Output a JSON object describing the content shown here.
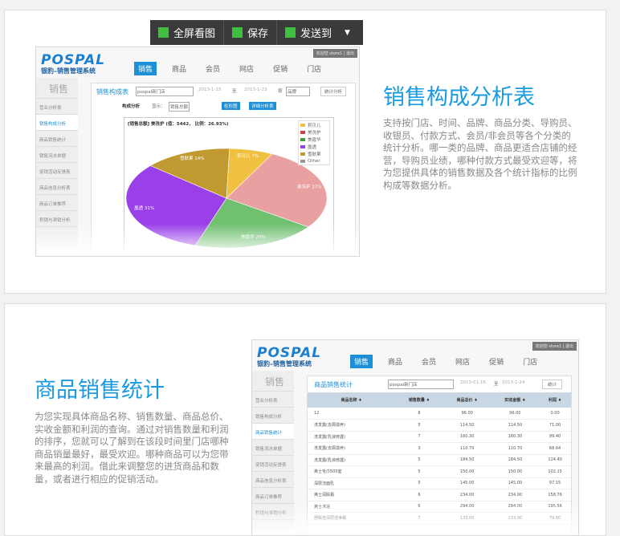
{
  "toolbar": {
    "fullscreen": "全屏看图",
    "save": "保存",
    "send": "发送到"
  },
  "app": {
    "logo": "POSPAL",
    "subtitle": "银豹–销售管理系统",
    "welcome": "欢迎您 store1 | 退出",
    "nav": [
      "销售",
      "商品",
      "会员",
      "网店",
      "促销",
      "门店"
    ],
    "side_header": "销售",
    "side": [
      "营业分析表",
      "销售构成分析",
      "商品销售统计",
      "销售流水单据",
      "促销活动反馈表",
      "商品信息分析表",
      "商品订单推荐",
      "积销与滞销分析"
    ]
  },
  "section1": {
    "title": "销售构成分析表",
    "description": "支持按门店、时间、品牌、商品分类、导购员、收银员、付款方式、会员/非会员等各个分类的统计分析。哪一类的品牌、商品更适合店铺的经营，导购员业绩，哪种付款方式最受欢迎等，将为您提供具体的销售数据及各个统计指标的比例构成等数据分析。",
    "panel_title": "销售构成表",
    "store": "pospal新门店",
    "date_from": "2013-1-15",
    "to": "至",
    "date_to": "2013-1-23",
    "by": "按",
    "by_value": "品牌",
    "stat_btn": "统计分析",
    "analysis": "构成分析",
    "show": "显示：",
    "show_value": "销售总额",
    "bar_btn": "柱形图",
    "detail_btn": "详细分析表",
    "info": "[销售总额] 美洗护 (值：5442， 比例：26.93%)",
    "pie": {
      "type": "pie",
      "slices": [
        {
          "name": "Other",
          "value": 0,
          "color": "#999999"
        },
        {
          "name": "莉贝儿",
          "value": 7,
          "color": "#f0c040"
        },
        {
          "name": "美洗护",
          "value": 27,
          "color": "#e8a0a0"
        },
        {
          "name": "美霞华",
          "value": 20,
          "color": "#70c070"
        },
        {
          "name": "凰透",
          "value": 31,
          "color": "#9a40e8"
        },
        {
          "name": "雪肤果",
          "value": 14,
          "color": "#c09a30"
        }
      ],
      "legend_colors": [
        "#f0c040",
        "#d04040",
        "#40a040",
        "#9a40e8",
        "#c09a30",
        "#999999"
      ]
    }
  },
  "section2": {
    "title": "商品销售统计",
    "description": "为您实现具体商品名称、销售数量、商品总价、实收金额和利润的查询。通过对销售数量和利润的排序，您就可以了解到在该段时间里门店哪种商品销量最好，最受欢迎。哪种商品可以为您带来最高的利润。借此来调整您的进货商品和数量，或者进行相应的促销活动。",
    "panel_title": "商品销售统计",
    "store": "pospal新门店",
    "date_from": "2013-01-16",
    "to": "至",
    "date_to": "2013-1-24",
    "stat_btn": "统计",
    "columns": [
      "商品名称 ♦",
      "销售数量 ♦",
      "商品总价 ♦",
      "实收金额 ♦",
      "利润 ♦"
    ],
    "rows": [
      [
        "12",
        "8",
        "96.00",
        "96.00",
        "0.00"
      ],
      [
        "洗发露(去屑滋养)",
        "5",
        "114.50",
        "114.50",
        "71.00"
      ],
      [
        "洗发露(乳液修護)",
        "7",
        "160.30",
        "160.30",
        "99.40"
      ],
      [
        "洗发露(去屑滋养)",
        "3",
        "110.70",
        "110.70",
        "68.64"
      ],
      [
        "洗发露(乳液修護)",
        "5",
        "184.50",
        "184.50",
        "114.40"
      ],
      [
        "爽士毛巾500室",
        "5",
        "150.00",
        "150.00",
        "102.15"
      ],
      [
        "深层洁面乳",
        "5",
        "145.00",
        "145.00",
        "97.15"
      ],
      [
        "爽士润肤霜",
        "6",
        "234.00",
        "234.00",
        "158.76"
      ],
      [
        "爽士沐浴",
        "6",
        "294.00",
        "294.00",
        "195.56"
      ],
      [
        "舒肤佳深层洁净霜",
        "7",
        "133.00",
        "133.00",
        "79.80"
      ]
    ]
  }
}
